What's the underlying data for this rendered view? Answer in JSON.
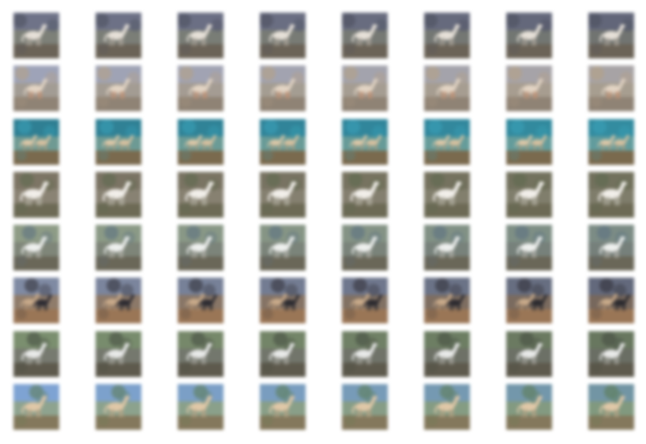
{
  "figure": {
    "rows": [
      {
        "sky": "#6f7388",
        "mid": "#7d8078",
        "ground": "#6b6357",
        "horse": "#e6e0d8",
        "accent": "#4b4f5d",
        "variant": "white-standing"
      },
      {
        "sky": "#9ea3b8",
        "mid": "#a29c94",
        "ground": "#8f8375",
        "horse": "#e2d4c4",
        "accent": "#b7a283",
        "variant": "pale-legs"
      },
      {
        "sky": "#2f7f93",
        "mid": "#6f9a93",
        "ground": "#7a6a4e",
        "horse": "#dcc8a8",
        "accent": "#3aa3b9",
        "variant": "twin-horses"
      },
      {
        "sky": "#7d7565",
        "mid": "#8a8374",
        "ground": "#6d6a55",
        "horse": "#f1eee9",
        "accent": "#5d6a4e",
        "variant": "white-large"
      },
      {
        "sky": "#8e9c86",
        "mid": "#7f8679",
        "ground": "#6a6758",
        "horse": "#eef0ee",
        "accent": "#5a6f82",
        "variant": "white-galloping"
      },
      {
        "sky": "#7f8aa3",
        "mid": "#8f7c6b",
        "ground": "#9a7656",
        "horse": "#c8aa8a",
        "accent": "#2e2c33",
        "variant": "brown-and-dark"
      },
      {
        "sky": "#7b8f6f",
        "mid": "#777a70",
        "ground": "#5e5a4d",
        "horse": "#e8e9e8",
        "accent": "#444a40",
        "variant": "white-dark-bg"
      },
      {
        "sky": "#7ea3d3",
        "mid": "#8ea38f",
        "ground": "#84785c",
        "horse": "#e0c8a8",
        "accent": "#5b7a4e",
        "variant": "sky-field"
      }
    ],
    "columns": 8
  }
}
